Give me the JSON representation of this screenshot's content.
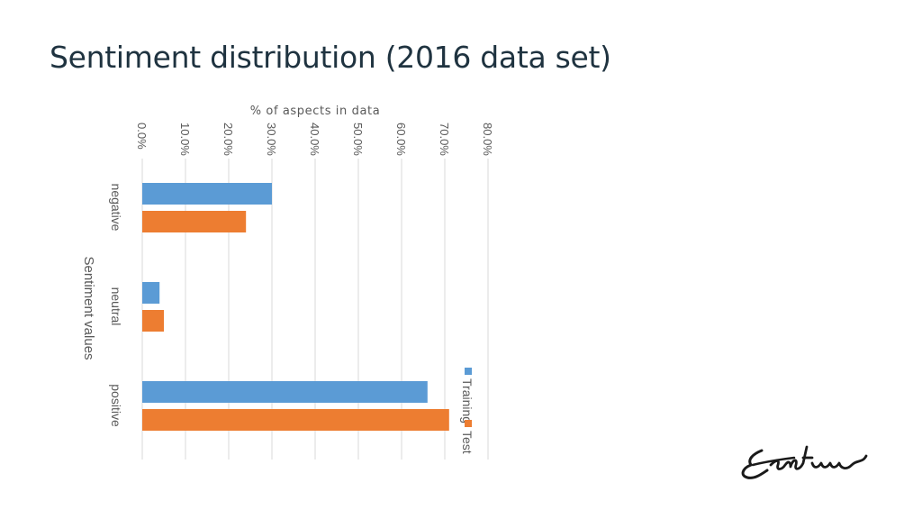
{
  "slide": {
    "title": "Sentiment distribution (2016 data set)"
  },
  "colors": {
    "training": "#5b9bd5",
    "test": "#ed7d31",
    "grid": "#d9d9d9",
    "text": "#595959",
    "title": "#1f3340"
  },
  "logo": {
    "icon": "erasmus-signature-logo",
    "text": "Erasmus"
  },
  "chart_data": {
    "type": "bar",
    "orientation": "horizontal",
    "rotated": true,
    "xlabel": "% of aspects in data",
    "ylabel": "Sentiment values",
    "xlim": [
      0,
      80
    ],
    "ticks": [
      "0.0%",
      "10.0%",
      "20.0%",
      "30.0%",
      "40.0%",
      "50.0%",
      "60.0%",
      "70.0%",
      "80.0%"
    ],
    "tick_values": [
      0,
      10,
      20,
      30,
      40,
      50,
      60,
      70,
      80
    ],
    "categories": [
      "negative",
      "neutral",
      "positive"
    ],
    "series": [
      {
        "name": "Training",
        "values": [
          30,
          4,
          66
        ]
      },
      {
        "name": "Test",
        "values": [
          24,
          5,
          71
        ]
      }
    ],
    "grid": true,
    "legend": "bottom-right"
  }
}
